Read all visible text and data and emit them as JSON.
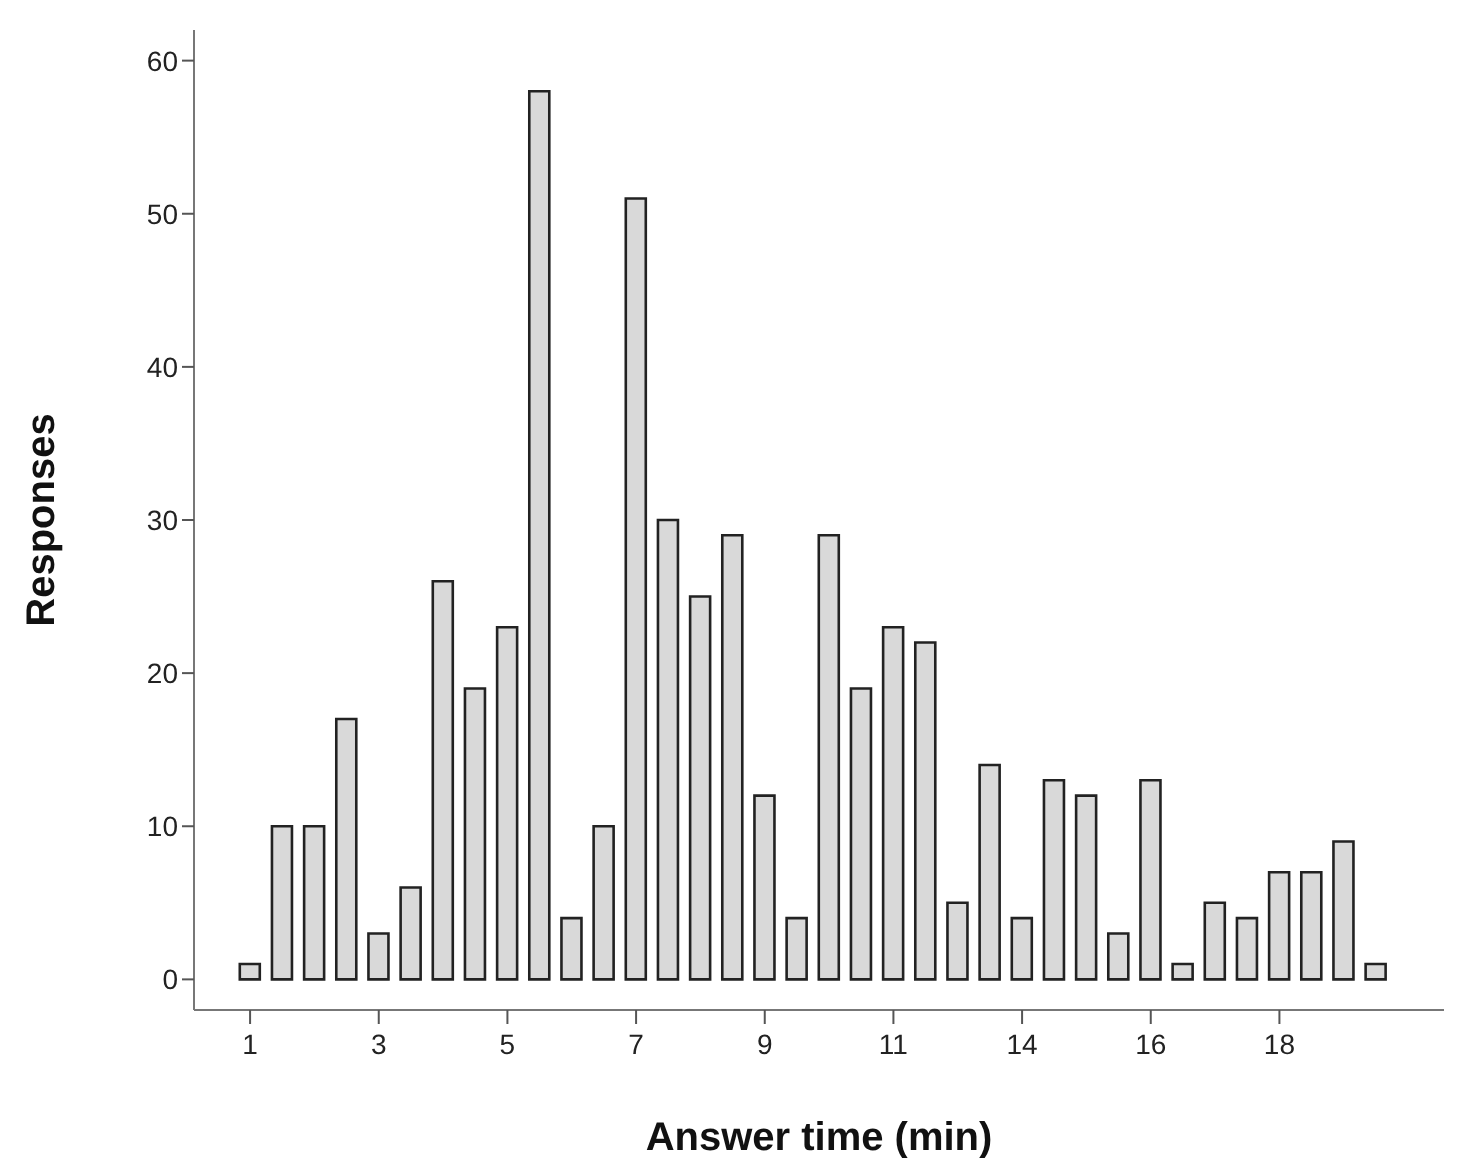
{
  "chart_data": {
    "type": "bar",
    "xlabel": "Answer time (min)",
    "ylabel": "Responses",
    "categories": [
      "1",
      null,
      null,
      null,
      "3",
      null,
      null,
      null,
      "5",
      null,
      null,
      null,
      "7",
      null,
      null,
      null,
      "9",
      null,
      null,
      null,
      "11",
      null,
      null,
      null,
      "14",
      null,
      null,
      null,
      "16",
      null,
      null,
      null,
      "18",
      null,
      null,
      null
    ],
    "values": [
      1,
      10,
      10,
      17,
      3,
      6,
      26,
      19,
      23,
      58,
      4,
      10,
      51,
      30,
      25,
      29,
      12,
      4,
      29,
      19,
      23,
      22,
      5,
      14,
      4,
      13,
      12,
      3,
      13,
      1,
      5,
      4,
      7,
      7,
      9,
      1
    ],
    "color": "#d9d9d9",
    "ylim": [
      -2,
      62
    ],
    "yticks": [
      0,
      10,
      20,
      30,
      40,
      50,
      60
    ]
  }
}
